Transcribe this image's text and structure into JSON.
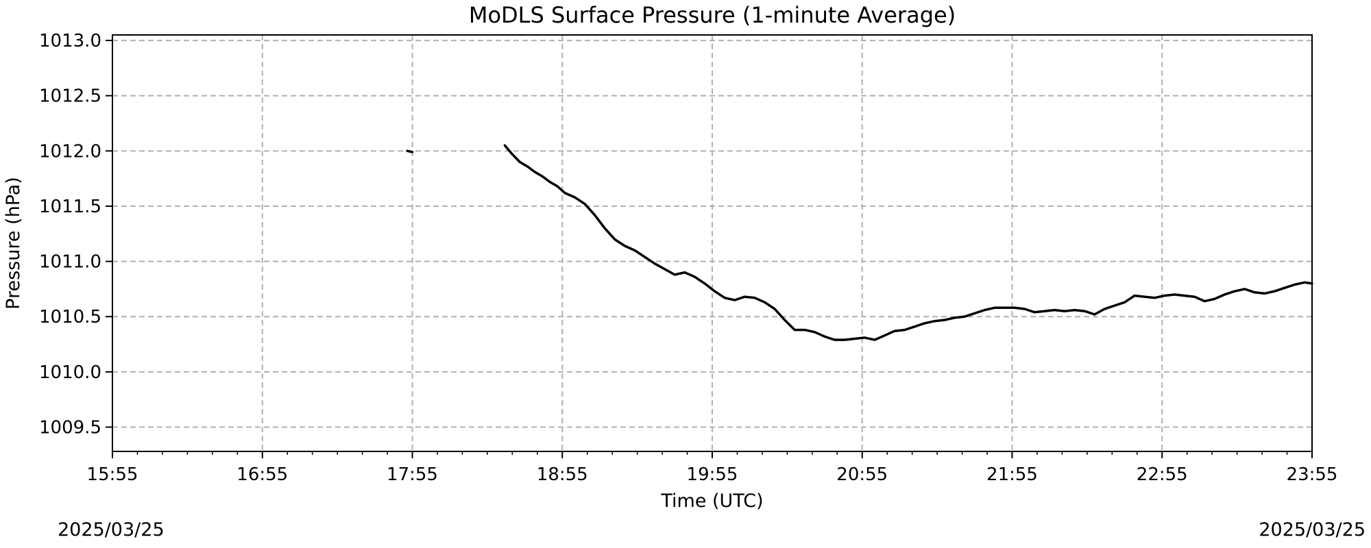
{
  "chart_data": {
    "type": "line",
    "title": "MoDLS Surface Pressure (1-minute Average)",
    "xlabel": "Time (UTC)",
    "ylabel": "Pressure (hPa)",
    "grid": true,
    "x_ticks": [
      "15:55",
      "16:55",
      "17:55",
      "18:55",
      "19:55",
      "20:55",
      "21:55",
      "22:55",
      "23:55"
    ],
    "y_ticks": [
      "1009.5",
      "1010.0",
      "1010.5",
      "1011.0",
      "1011.5",
      "1012.0",
      "1012.5",
      "1013.0"
    ],
    "xlim": [
      "15:55",
      "23:55"
    ],
    "ylim": [
      1009.28,
      1013.05
    ],
    "date_left": "2025/03/25",
    "date_right": "2025/03/25",
    "line_color": "#000000",
    "series": [
      {
        "segment": 1,
        "x": [
          "17:53",
          "17:55"
        ],
        "y": [
          1012.0,
          1011.99
        ]
      },
      {
        "segment": 2,
        "x": [
          "18:32",
          "18:35",
          "18:38",
          "18:41",
          "18:44",
          "18:47",
          "18:50",
          "18:53",
          "18:56",
          "19:00",
          "19:04",
          "19:08",
          "19:12",
          "19:16",
          "19:20",
          "19:24",
          "19:28",
          "19:32",
          "19:36",
          "19:40",
          "19:44",
          "19:48",
          "19:52",
          "19:56",
          "20:00",
          "20:04",
          "20:08",
          "20:12",
          "20:16",
          "20:20",
          "20:24",
          "20:28",
          "20:32",
          "20:36",
          "20:40",
          "20:44",
          "20:48",
          "20:52",
          "20:56",
          "21:00",
          "21:04",
          "21:08",
          "21:12",
          "21:16",
          "21:20",
          "21:24",
          "21:28",
          "21:32",
          "21:36",
          "21:40",
          "21:44",
          "21:48",
          "21:52",
          "21:56",
          "22:00",
          "22:04",
          "22:08",
          "22:12",
          "22:16",
          "22:20",
          "22:24",
          "22:28",
          "22:32",
          "22:36",
          "22:40",
          "22:44",
          "22:48",
          "22:52",
          "22:56",
          "23:00",
          "23:04",
          "23:08",
          "23:12",
          "23:16",
          "23:20",
          "23:24",
          "23:28",
          "23:32",
          "23:36",
          "23:40",
          "23:44",
          "23:48",
          "23:52",
          "23:55"
        ],
        "y": [
          1012.05,
          1011.97,
          1011.9,
          1011.86,
          1011.81,
          1011.77,
          1011.72,
          1011.68,
          1011.62,
          1011.58,
          1011.52,
          1011.42,
          1011.3,
          1011.2,
          1011.14,
          1011.1,
          1011.04,
          1010.98,
          1010.93,
          1010.88,
          1010.9,
          1010.86,
          1010.8,
          1010.73,
          1010.67,
          1010.65,
          1010.68,
          1010.67,
          1010.63,
          1010.57,
          1010.47,
          1010.38,
          1010.38,
          1010.36,
          1010.32,
          1010.29,
          1010.29,
          1010.3,
          1010.31,
          1010.29,
          1010.33,
          1010.37,
          1010.38,
          1010.41,
          1010.44,
          1010.46,
          1010.47,
          1010.49,
          1010.5,
          1010.53,
          1010.56,
          1010.58,
          1010.58,
          1010.58,
          1010.57,
          1010.54,
          1010.55,
          1010.56,
          1010.55,
          1010.56,
          1010.55,
          1010.52,
          1010.57,
          1010.6,
          1010.63,
          1010.69,
          1010.68,
          1010.67,
          1010.69,
          1010.7,
          1010.69,
          1010.68,
          1010.64,
          1010.66,
          1010.7,
          1010.73,
          1010.75,
          1010.72,
          1010.71,
          1010.73,
          1010.76,
          1010.79,
          1010.81,
          1010.8
        ]
      }
    ]
  }
}
